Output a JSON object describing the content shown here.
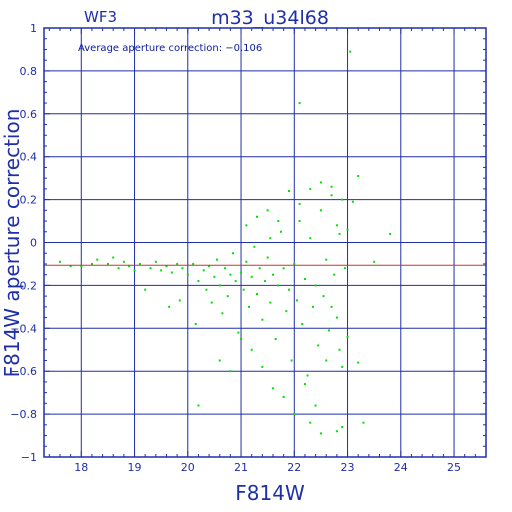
{
  "chart_data": {
    "type": "scatter",
    "title": "m33_u34l68",
    "panel_label": "WF3",
    "annotation": "Average aperture correction: −0.106",
    "xlabel": "F814W",
    "ylabel": "F814W aperture correction",
    "xlim": [
      17.3,
      25.6
    ],
    "ylim": [
      -1,
      1
    ],
    "x_ticks": [
      18,
      19,
      20,
      21,
      22,
      23,
      24,
      25
    ],
    "y_ticks": [
      -1,
      -0.8,
      -0.6,
      -0.4,
      -0.2,
      0,
      0.2,
      0.4,
      0.6,
      0.8,
      1
    ],
    "y_tick_labels": [
      "−1",
      "−0.8",
      "−0.6",
      "−0.4",
      "−0.2",
      "0",
      "0.2",
      "0.4",
      "0.6",
      "0.8",
      "1"
    ],
    "grid": true,
    "reference_line": {
      "y": -0.106,
      "color": "#c0392b"
    },
    "colors": {
      "axis": "#1f2fa8",
      "grid": "#1f2fa8",
      "points": "#00e000"
    },
    "points": [
      [
        17.6,
        -0.09
      ],
      [
        17.8,
        -0.11
      ],
      [
        18.0,
        -0.11
      ],
      [
        18.2,
        -0.1
      ],
      [
        18.3,
        -0.08
      ],
      [
        18.5,
        -0.1
      ],
      [
        18.6,
        -0.07
      ],
      [
        18.7,
        -0.12
      ],
      [
        18.8,
        -0.09
      ],
      [
        18.9,
        -0.11
      ],
      [
        19.0,
        -0.13
      ],
      [
        19.1,
        -0.1
      ],
      [
        19.2,
        -0.22
      ],
      [
        19.3,
        -0.12
      ],
      [
        19.4,
        -0.09
      ],
      [
        19.5,
        -0.13
      ],
      [
        19.6,
        -0.11
      ],
      [
        19.7,
        -0.14
      ],
      [
        19.8,
        -0.1
      ],
      [
        19.9,
        -0.12
      ],
      [
        19.65,
        -0.3
      ],
      [
        19.85,
        -0.27
      ],
      [
        20.0,
        -0.15
      ],
      [
        20.1,
        -0.1
      ],
      [
        20.15,
        -0.38
      ],
      [
        20.2,
        -0.18
      ],
      [
        20.3,
        -0.13
      ],
      [
        20.35,
        -0.22
      ],
      [
        20.4,
        -0.11
      ],
      [
        20.45,
        -0.28
      ],
      [
        20.5,
        -0.16
      ],
      [
        20.55,
        -0.08
      ],
      [
        20.6,
        -0.2
      ],
      [
        20.65,
        -0.33
      ],
      [
        20.7,
        -0.12
      ],
      [
        20.75,
        -0.25
      ],
      [
        20.8,
        -0.15
      ],
      [
        20.85,
        -0.05
      ],
      [
        20.9,
        -0.18
      ],
      [
        20.95,
        -0.42
      ],
      [
        21.0,
        -0.14
      ],
      [
        21.05,
        -0.22
      ],
      [
        21.1,
        -0.09
      ],
      [
        21.15,
        -0.3
      ],
      [
        21.2,
        -0.16
      ],
      [
        21.25,
        -0.02
      ],
      [
        21.3,
        -0.24
      ],
      [
        21.35,
        -0.12
      ],
      [
        21.4,
        -0.36
      ],
      [
        21.45,
        -0.18
      ],
      [
        21.5,
        -0.07
      ],
      [
        21.55,
        -0.28
      ],
      [
        21.6,
        -0.15
      ],
      [
        21.65,
        -0.45
      ],
      [
        21.7,
        -0.2
      ],
      [
        21.75,
        0.05
      ],
      [
        21.8,
        -0.12
      ],
      [
        21.85,
        -0.32
      ],
      [
        21.9,
        -0.22
      ],
      [
        21.95,
        -0.55
      ],
      [
        22.0,
        -0.1
      ],
      [
        22.05,
        -0.27
      ],
      [
        22.1,
        0.1
      ],
      [
        22.15,
        -0.38
      ],
      [
        22.2,
        -0.17
      ],
      [
        22.25,
        -0.62
      ],
      [
        22.3,
        0.02
      ],
      [
        22.35,
        -0.3
      ],
      [
        22.4,
        -0.2
      ],
      [
        22.45,
        -0.48
      ],
      [
        22.5,
        0.15
      ],
      [
        22.55,
        -0.25
      ],
      [
        22.6,
        -0.08
      ],
      [
        22.65,
        -0.41
      ],
      [
        22.7,
        0.22
      ],
      [
        22.75,
        -0.15
      ],
      [
        22.8,
        -0.35
      ],
      [
        22.85,
        0.04
      ],
      [
        22.9,
        -0.58
      ],
      [
        22.95,
        -0.12
      ],
      [
        21.0,
        -0.45
      ],
      [
        21.2,
        -0.5
      ],
      [
        21.4,
        -0.58
      ],
      [
        21.6,
        -0.68
      ],
      [
        21.8,
        -0.72
      ],
      [
        22.0,
        -0.8
      ],
      [
        22.2,
        -0.66
      ],
      [
        22.4,
        -0.76
      ],
      [
        22.6,
        -0.55
      ],
      [
        22.8,
        -0.88
      ],
      [
        21.1,
        0.08
      ],
      [
        21.3,
        0.12
      ],
      [
        21.5,
        0.15
      ],
      [
        21.7,
        0.1
      ],
      [
        21.9,
        0.24
      ],
      [
        22.1,
        0.18
      ],
      [
        22.3,
        0.25
      ],
      [
        22.5,
        0.28
      ],
      [
        22.7,
        0.26
      ],
      [
        22.9,
        0.2
      ],
      [
        20.6,
        -0.55
      ],
      [
        20.8,
        -0.6
      ],
      [
        22.3,
        -0.84
      ],
      [
        22.5,
        -0.89
      ],
      [
        22.9,
        -0.86
      ],
      [
        20.2,
        -0.76
      ],
      [
        23.0,
        0.06
      ],
      [
        23.1,
        0.19
      ],
      [
        23.2,
        0.31
      ],
      [
        23.05,
        0.89
      ],
      [
        22.1,
        0.65
      ],
      [
        23.8,
        0.04
      ],
      [
        23.5,
        -0.09
      ],
      [
        23.3,
        -0.84
      ],
      [
        23.2,
        -0.56
      ],
      [
        22.7,
        -0.3
      ],
      [
        22.8,
        0.08
      ],
      [
        23.0,
        -0.44
      ],
      [
        22.85,
        -0.5
      ],
      [
        21.55,
        0.02
      ]
    ]
  }
}
